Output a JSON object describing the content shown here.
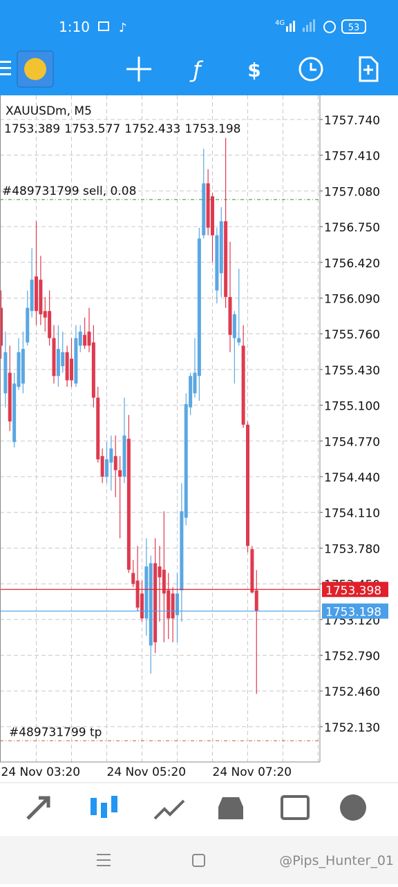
{
  "status_bar": {
    "time": "1:10",
    "network": "4G",
    "battery": "53"
  },
  "watermark": "@Pips_Hunter_01",
  "chart_data": {
    "type": "candlestick",
    "title": "XAUUSDm, M5",
    "categories": [
      "24 Nov 03:20",
      null,
      null,
      null,
      null,
      null,
      null,
      null,
      null,
      null,
      null,
      null,
      null,
      null,
      null,
      null,
      null,
      null,
      null,
      null,
      null,
      null,
      null,
      null,
      "24 Nov 05:20",
      null,
      null,
      null,
      null,
      null,
      null,
      null,
      null,
      null,
      null,
      null,
      null,
      null,
      null,
      null,
      null,
      null,
      null,
      null,
      null,
      null,
      null,
      null,
      "24 Nov 07:20",
      null,
      null,
      null,
      null,
      null,
      null,
      null,
      null,
      null,
      null
    ],
    "open": [
      1756.0,
      1755.21,
      1755.4,
      1754.76,
      1755.27,
      1755.3,
      1755.68,
      1755.97,
      1756.29,
      1756.26,
      1755.97,
      1755.97,
      1755.72,
      1755.37,
      1755.46,
      1755.59,
      1755.53,
      1755.3,
      1755.65,
      1755.75,
      1755.78,
      1755.68,
      1755.17,
      1754.63,
      1754.44,
      1754.57,
      1754.63,
      1754.5,
      1754.44,
      1754.79,
      1753.55,
      1753.48,
      1753.36,
      1753.13,
      1752.88,
      1753.64,
      1753.61,
      1753.58,
      1753.39,
      1753.36,
      1753.16,
      1753.39,
      1754.06,
      1755.08,
      1755.21,
      1755.37,
      1756.67,
      1757.15,
      1757.03,
      1756.16,
      1756.32,
      1756.8,
      1756.1,
      1755.72,
      1755.68,
      1755.65,
      1754.92,
      1753.77,
      1753.389
    ],
    "high": [
      1756.16,
      1755.78,
      1755.65,
      1755.4,
      1755.72,
      1755.78,
      1756.16,
      1756.55,
      1756.8,
      1756.48,
      1756.1,
      1756.16,
      1755.84,
      1755.84,
      1755.78,
      1755.65,
      1755.72,
      1755.84,
      1755.84,
      1755.91,
      1756.0,
      1755.84,
      1755.27,
      1754.7,
      1754.76,
      1754.82,
      1754.82,
      1754.63,
      1755.17,
      1755.01,
      1753.67,
      1753.8,
      1753.48,
      1753.87,
      1753.71,
      1753.87,
      1753.8,
      1754.12,
      1753.55,
      1753.42,
      1753.55,
      1754.38,
      1755.21,
      1755.4,
      1755.72,
      1756.74,
      1757.47,
      1757.28,
      1757.06,
      1756.74,
      1756.93,
      1757.57,
      1756.61,
      1755.97,
      1756.36,
      1755.84,
      1754.95,
      1753.8,
      1753.577
    ],
    "low": [
      1755.53,
      1755.08,
      1754.86,
      1754.71,
      1755.24,
      1755.21,
      1755.65,
      1755.91,
      1755.84,
      1755.84,
      1755.78,
      1755.65,
      1755.3,
      1755.27,
      1755.4,
      1755.27,
      1755.27,
      1755.27,
      1755.59,
      1755.62,
      1755.59,
      1755.08,
      1754.57,
      1754.38,
      1754.38,
      1754.31,
      1754.25,
      1753.87,
      1754.38,
      1753.55,
      1753.42,
      1753.2,
      1753.1,
      1752.97,
      1752.62,
      1752.81,
      1753.1,
      1752.91,
      1752.94,
      1752.91,
      1752.91,
      1753.1,
      1753.99,
      1755.01,
      1755.17,
      1755.14,
      1756.64,
      1756.67,
      1756.42,
      1756.04,
      1756.1,
      1756.0,
      1755.59,
      1755.3,
      1755.65,
      1754.89,
      1753.74,
      1753.36,
      1752.433
    ],
    "close": [
      1755.65,
      1755.59,
      1754.95,
      1755.3,
      1755.59,
      1755.62,
      1756.0,
      1756.26,
      1755.97,
      1755.94,
      1755.91,
      1755.72,
      1755.37,
      1755.62,
      1755.59,
      1755.33,
      1755.33,
      1755.72,
      1755.78,
      1755.65,
      1755.65,
      1755.17,
      1754.6,
      1754.44,
      1754.6,
      1754.7,
      1754.5,
      1754.44,
      1754.82,
      1753.58,
      1753.45,
      1753.23,
      1753.13,
      1753.61,
      1753.64,
      1752.91,
      1753.51,
      1753.36,
      1753.13,
      1753.13,
      1753.36,
      1754.12,
      1755.11,
      1755.37,
      1755.4,
      1756.64,
      1757.15,
      1756.74,
      1756.67,
      1756.67,
      1756.8,
      1756.1,
      1755.75,
      1755.94,
      1755.72,
      1754.92,
      1753.8,
      1753.37,
      1753.198
    ],
    "up_color": "#5aa7e2",
    "down_color": "#de3a4f",
    "ylim": [
      1751.804,
      1757.963
    ],
    "yticks": [
      {
        "value": 1757.74,
        "label": "1757.740"
      },
      {
        "value": 1757.41,
        "label": "1757.410"
      },
      {
        "value": 1757.08,
        "label": "1757.080"
      },
      {
        "value": 1756.75,
        "label": "1756.750"
      },
      {
        "value": 1756.42,
        "label": "1756.420"
      },
      {
        "value": 1756.09,
        "label": "1756.090"
      },
      {
        "value": 1755.76,
        "label": "1755.760"
      },
      {
        "value": 1755.43,
        "label": "1755.430"
      },
      {
        "value": 1755.1,
        "label": "1755.100"
      },
      {
        "value": 1754.77,
        "label": "1754.770"
      },
      {
        "value": 1754.44,
        "label": "1754.440"
      },
      {
        "value": 1754.11,
        "label": "1754.110"
      },
      {
        "value": 1753.78,
        "label": "1753.780"
      },
      {
        "value": 1753.45,
        "label": "1753.450"
      },
      {
        "value": 1753.12,
        "label": "1753.120"
      },
      {
        "value": 1752.79,
        "label": "1752.790"
      },
      {
        "value": 1752.46,
        "label": "1752.460"
      },
      {
        "value": 1752.13,
        "label": "1752.130"
      }
    ],
    "grid": true,
    "order_lines": [
      {
        "label": "#489731799 sell, 0.08",
        "value": 1757.0,
        "color": "#3a8a3a"
      },
      {
        "label": "#489731799 tp",
        "value": 1752.0,
        "color": "#c0603a"
      }
    ],
    "price_lines": [
      {
        "value": 1753.398,
        "color": "#e0202a"
      },
      {
        "value": 1753.198,
        "color": "#4a9fe8"
      }
    ]
  }
}
